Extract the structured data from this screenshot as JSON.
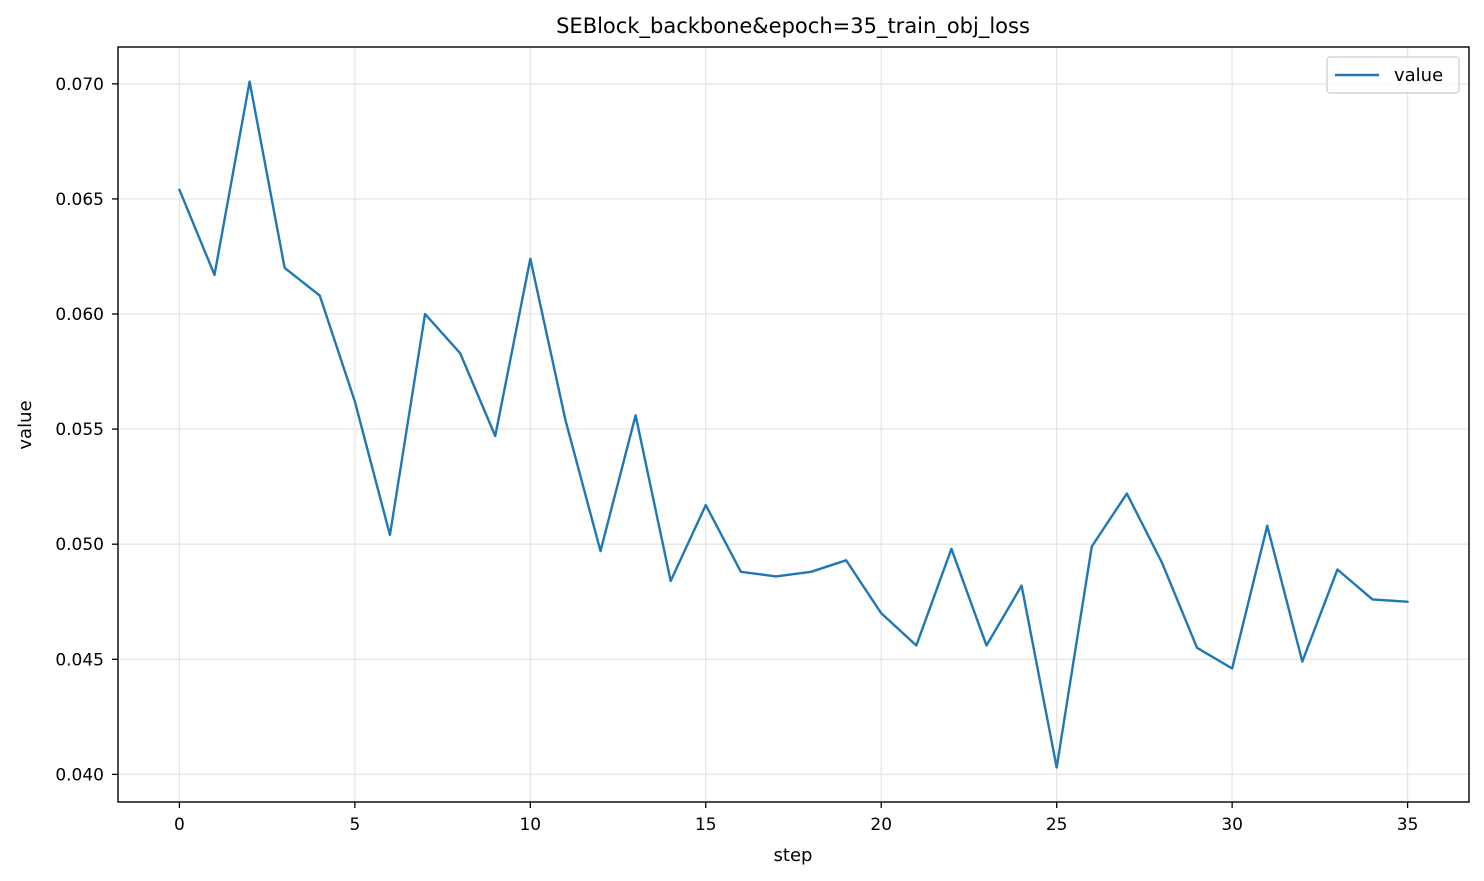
{
  "chart_data": {
    "type": "line",
    "title": "SEBlock_backbone&epoch=35_train_obj_loss",
    "xlabel": "step",
    "ylabel": "value",
    "xlim": [
      -1.75,
      36.75
    ],
    "ylim": [
      0.0388,
      0.0716
    ],
    "xticks": [
      0,
      5,
      10,
      15,
      20,
      25,
      30,
      35
    ],
    "yticks": [
      0.04,
      0.045,
      0.05,
      0.055,
      0.06,
      0.065,
      0.07
    ],
    "xtick_labels": [
      "0",
      "5",
      "10",
      "15",
      "20",
      "25",
      "30",
      "35"
    ],
    "ytick_labels": [
      "0.040",
      "0.045",
      "0.050",
      "0.055",
      "0.060",
      "0.065",
      "0.070"
    ],
    "grid": true,
    "legend": {
      "placement": "top-right",
      "entries": [
        "value"
      ]
    },
    "series": [
      {
        "name": "value",
        "color": "#1f77b4",
        "x": [
          0,
          1,
          2,
          3,
          4,
          5,
          6,
          7,
          8,
          9,
          10,
          11,
          12,
          13,
          14,
          15,
          16,
          17,
          18,
          19,
          20,
          21,
          22,
          23,
          24,
          25,
          26,
          27,
          28,
          29,
          30,
          31,
          32,
          33,
          34,
          35
        ],
        "values": [
          0.0654,
          0.0617,
          0.0701,
          0.062,
          0.0608,
          0.0562,
          0.0504,
          0.06,
          0.0583,
          0.0547,
          0.0624,
          0.0554,
          0.0497,
          0.0556,
          0.0484,
          0.0517,
          0.0488,
          0.0486,
          0.0488,
          0.0493,
          0.047,
          0.0456,
          0.0498,
          0.0456,
          0.0482,
          0.0403,
          0.0499,
          0.0522,
          0.0492,
          0.0455,
          0.0446,
          0.0508,
          0.0449,
          0.0489,
          0.0476,
          0.0475
        ]
      }
    ]
  }
}
